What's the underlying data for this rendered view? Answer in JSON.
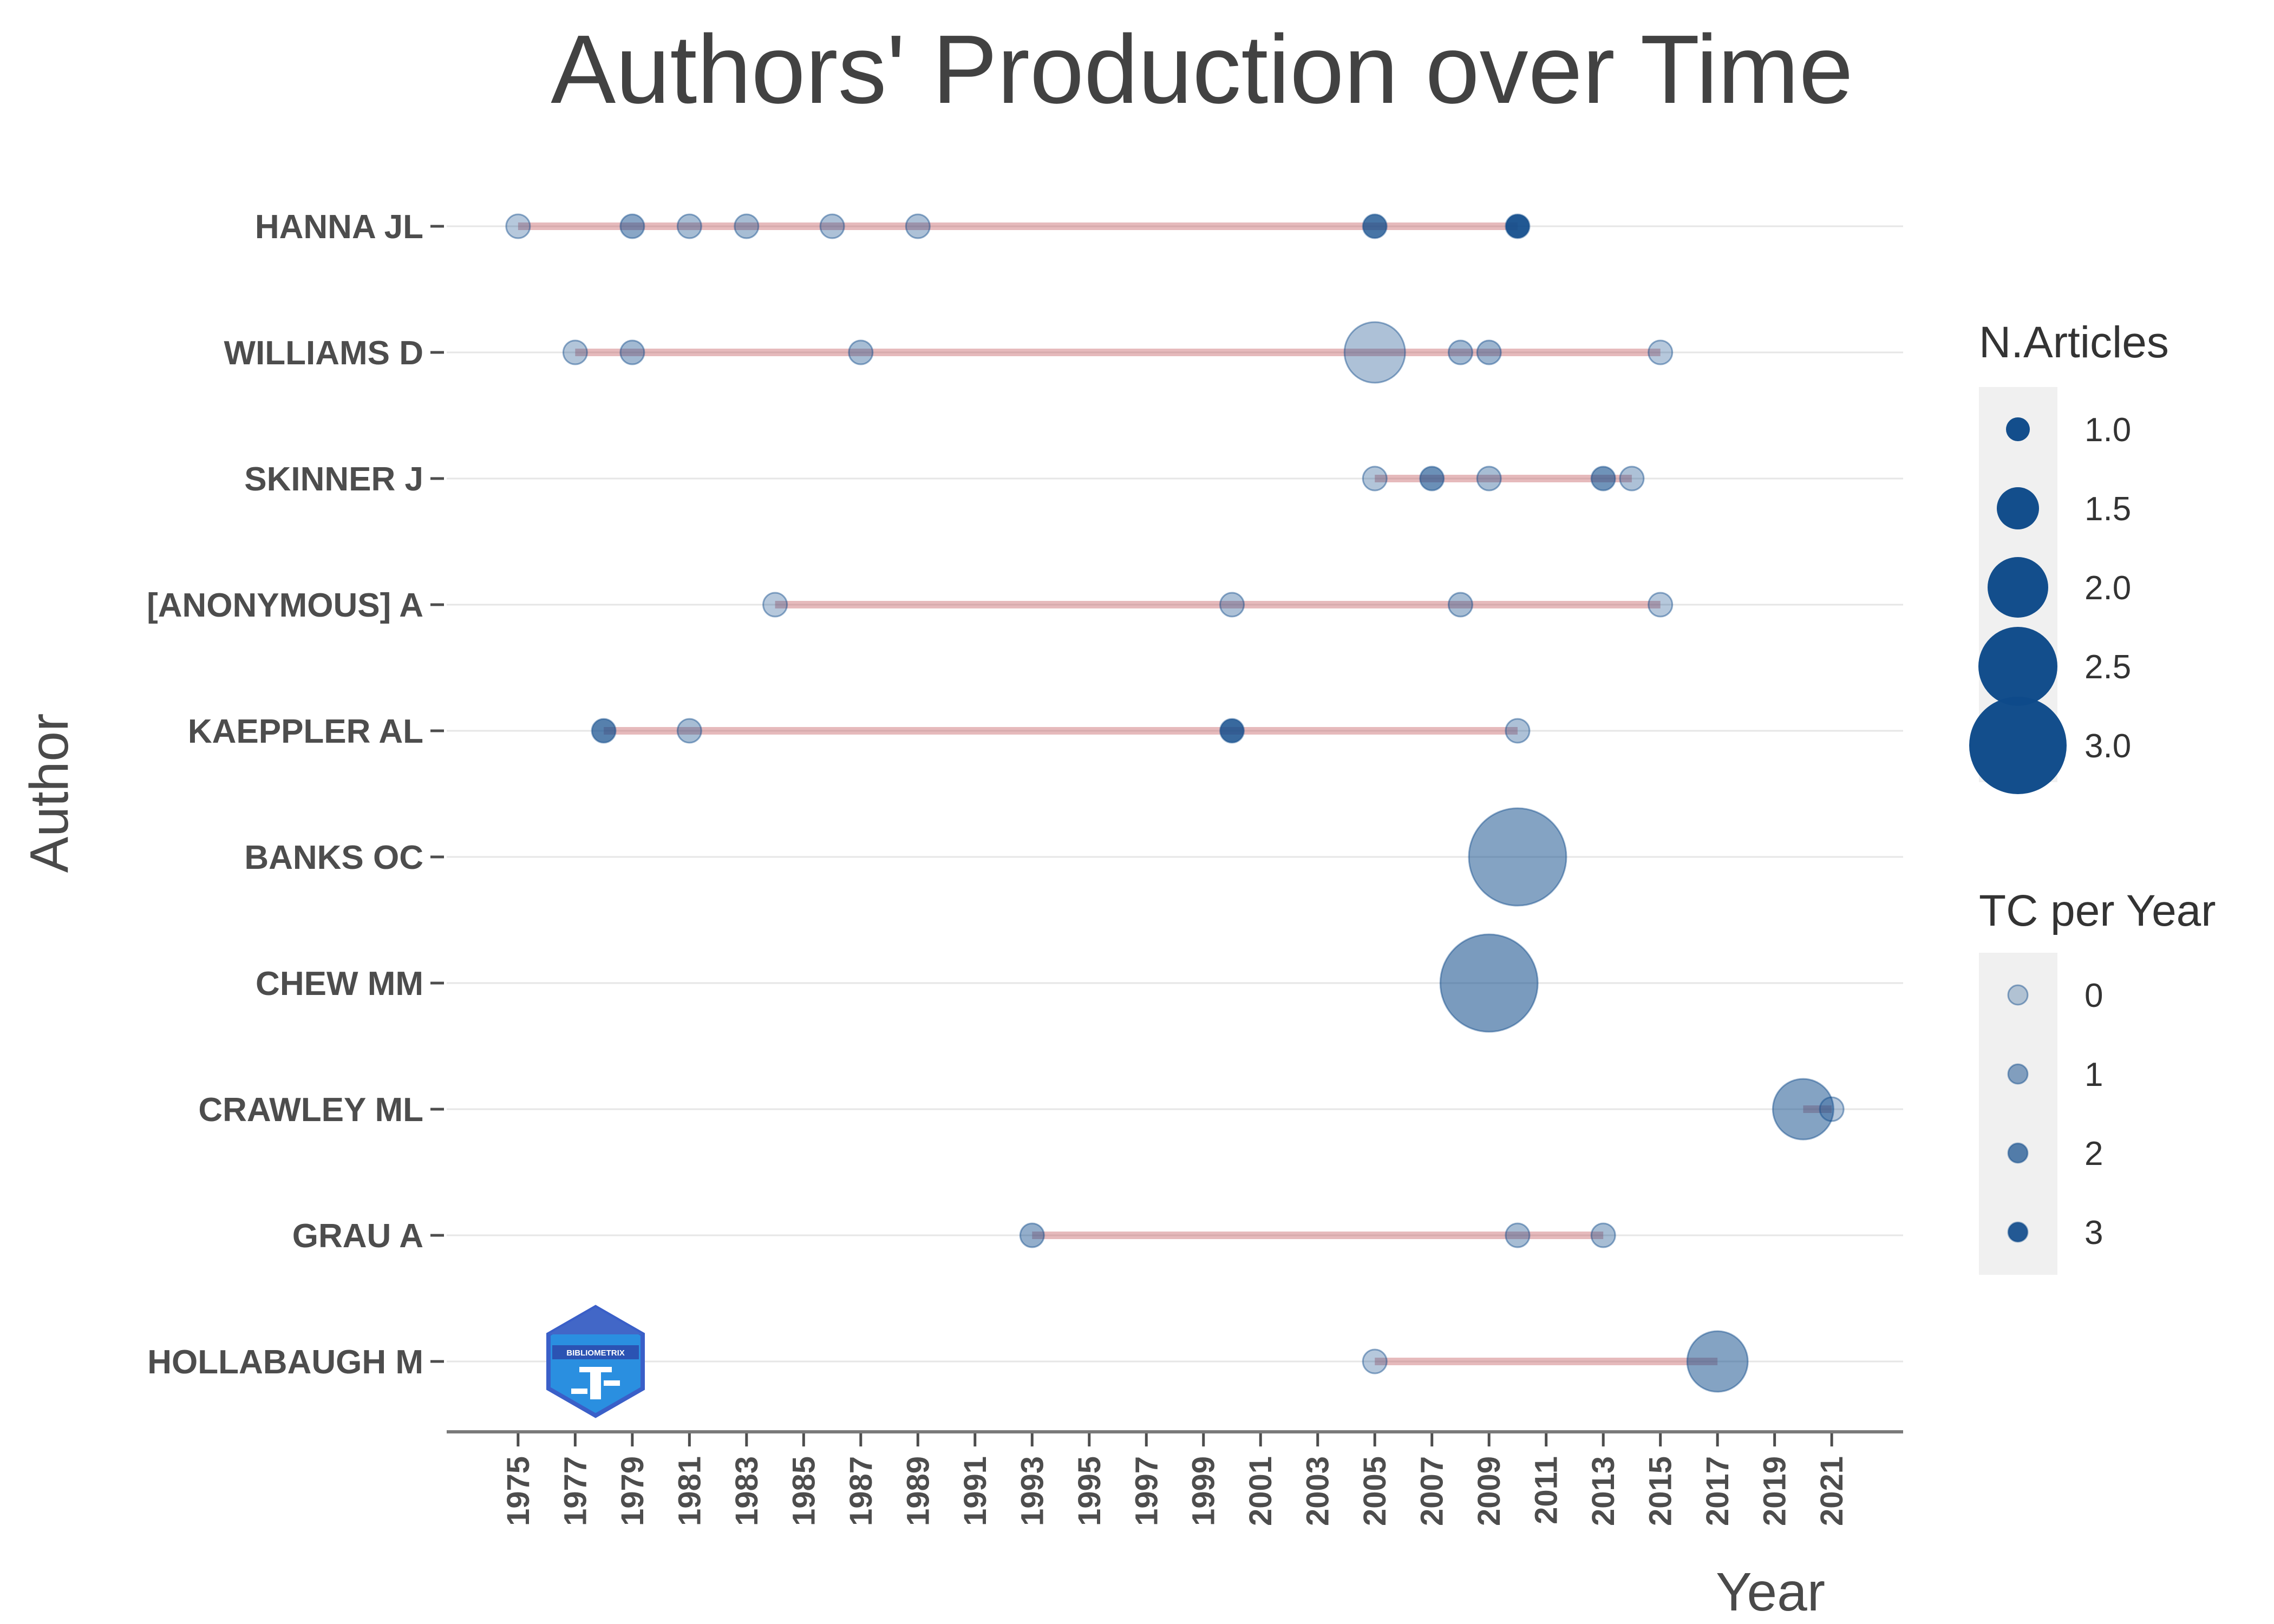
{
  "chart_data": {
    "type": "scatter",
    "title": "Authors' Production over Time",
    "xlabel": "Year",
    "ylabel": "Author",
    "xlim": [
      1972.5,
      2023.5
    ],
    "x_ticks": [
      1975,
      1977,
      1979,
      1981,
      1983,
      1985,
      1987,
      1989,
      1991,
      1993,
      1995,
      1997,
      1999,
      2001,
      2003,
      2005,
      2007,
      2009,
      2011,
      2013,
      2015,
      2017,
      2019,
      2021
    ],
    "grid": "horizontal",
    "authors": [
      "HANNA JL",
      "WILLIAMS D",
      "SKINNER J",
      "[ANONYMOUS] A",
      "KAEPPLER AL",
      "BANKS OC",
      "CHEW MM",
      "CRAWLEY ML",
      "GRAU A",
      "HOLLABAUGH M"
    ],
    "lines": [
      {
        "author": "HANNA JL",
        "start": 1975,
        "end": 2010
      },
      {
        "author": "WILLIAMS D",
        "start": 1977,
        "end": 2015
      },
      {
        "author": "SKINNER J",
        "start": 2005,
        "end": 2014
      },
      {
        "author": "[ANONYMOUS] A",
        "start": 1984,
        "end": 2015
      },
      {
        "author": "KAEPPLER AL",
        "start": 1978,
        "end": 2010
      },
      {
        "author": "BANKS OC",
        "start": 2010,
        "end": 2010
      },
      {
        "author": "CHEW MM",
        "start": 2009,
        "end": 2009
      },
      {
        "author": "CRAWLEY ML",
        "start": 2020,
        "end": 2021
      },
      {
        "author": "GRAU A",
        "start": 1993,
        "end": 2013
      },
      {
        "author": "HOLLABAUGH M",
        "start": 2005,
        "end": 2017
      }
    ],
    "points": [
      {
        "author": "HANNA JL",
        "year": 1975,
        "articles": 1,
        "tc_per_year": 0.1
      },
      {
        "author": "HANNA JL",
        "year": 1979,
        "articles": 1,
        "tc_per_year": 1.0
      },
      {
        "author": "HANNA JL",
        "year": 1981,
        "articles": 1,
        "tc_per_year": 0.4
      },
      {
        "author": "HANNA JL",
        "year": 1983,
        "articles": 1,
        "tc_per_year": 0.4
      },
      {
        "author": "HANNA JL",
        "year": 1986,
        "articles": 1,
        "tc_per_year": 0.3
      },
      {
        "author": "HANNA JL",
        "year": 1989,
        "articles": 1,
        "tc_per_year": 0.3
      },
      {
        "author": "HANNA JL",
        "year": 2005,
        "articles": 1,
        "tc_per_year": 2.3
      },
      {
        "author": "HANNA JL",
        "year": 2010,
        "articles": 1,
        "tc_per_year": 3.3
      },
      {
        "author": "WILLIAMS D",
        "year": 1977,
        "articles": 1,
        "tc_per_year": 0.2
      },
      {
        "author": "WILLIAMS D",
        "year": 1979,
        "articles": 1,
        "tc_per_year": 0.5
      },
      {
        "author": "WILLIAMS D",
        "year": 1987,
        "articles": 1,
        "tc_per_year": 0.4
      },
      {
        "author": "WILLIAMS D",
        "year": 2005,
        "articles": 2,
        "tc_per_year": 0.3
      },
      {
        "author": "WILLIAMS D",
        "year": 2008,
        "articles": 1,
        "tc_per_year": 0.5
      },
      {
        "author": "WILLIAMS D",
        "year": 2009,
        "articles": 1,
        "tc_per_year": 0.6
      },
      {
        "author": "WILLIAMS D",
        "year": 2015,
        "articles": 1,
        "tc_per_year": 0.1
      },
      {
        "author": "SKINNER J",
        "year": 2005,
        "articles": 1,
        "tc_per_year": 0.2
      },
      {
        "author": "SKINNER J",
        "year": 2007,
        "articles": 1,
        "tc_per_year": 1.6
      },
      {
        "author": "SKINNER J",
        "year": 2009,
        "articles": 1,
        "tc_per_year": 0.4
      },
      {
        "author": "SKINNER J",
        "year": 2013,
        "articles": 1,
        "tc_per_year": 1.5
      },
      {
        "author": "SKINNER J",
        "year": 2014,
        "articles": 1,
        "tc_per_year": 0.3
      },
      {
        "author": "[ANONYMOUS] A",
        "year": 1984,
        "articles": 1,
        "tc_per_year": 0.1
      },
      {
        "author": "[ANONYMOUS] A",
        "year": 2000,
        "articles": 1,
        "tc_per_year": 0.3
      },
      {
        "author": "[ANONYMOUS] A",
        "year": 2008,
        "articles": 1,
        "tc_per_year": 0.4
      },
      {
        "author": "[ANONYMOUS] A",
        "year": 2015,
        "articles": 1,
        "tc_per_year": 0.1
      },
      {
        "author": "KAEPPLER AL",
        "year": 1978,
        "articles": 1,
        "tc_per_year": 2.0
      },
      {
        "author": "KAEPPLER AL",
        "year": 1981,
        "articles": 1,
        "tc_per_year": 0.4
      },
      {
        "author": "KAEPPLER AL",
        "year": 2000,
        "articles": 1,
        "tc_per_year": 2.6
      },
      {
        "author": "KAEPPLER AL",
        "year": 2010,
        "articles": 1,
        "tc_per_year": 0.3
      },
      {
        "author": "BANKS OC",
        "year": 2010,
        "articles": 3,
        "tc_per_year": 1.1
      },
      {
        "author": "CHEW MM",
        "year": 2009,
        "articles": 3,
        "tc_per_year": 1.3
      },
      {
        "author": "CRAWLEY ML",
        "year": 2020,
        "articles": 2,
        "tc_per_year": 1.1
      },
      {
        "author": "CRAWLEY ML",
        "year": 2021,
        "articles": 1,
        "tc_per_year": 0.1
      },
      {
        "author": "GRAU A",
        "year": 1993,
        "articles": 1,
        "tc_per_year": 0.8
      },
      {
        "author": "GRAU A",
        "year": 2010,
        "articles": 1,
        "tc_per_year": 0.4
      },
      {
        "author": "GRAU A",
        "year": 2013,
        "articles": 1,
        "tc_per_year": 0.4
      },
      {
        "author": "HOLLABAUGH M",
        "year": 2005,
        "articles": 1,
        "tc_per_year": 0.1
      },
      {
        "author": "HOLLABAUGH M",
        "year": 2017,
        "articles": 2,
        "tc_per_year": 1.1
      }
    ],
    "legend_size": {
      "title": "N.Articles",
      "values": [
        1.0,
        1.5,
        2.0,
        2.5,
        3.0
      ],
      "labels": [
        "1.0",
        "1.5",
        "2.0",
        "2.5",
        "3.0"
      ]
    },
    "legend_color": {
      "title": "TC per Year",
      "values": [
        0,
        1,
        2,
        3
      ],
      "labels": [
        "0",
        "1",
        "2",
        "3"
      ]
    },
    "legend_placement": "right",
    "colors": {
      "point": "#0e4a8a",
      "line": "#c45a5f",
      "grid": "#e6e6e6",
      "axis": "#7a7a7a",
      "legend_bg": "#f0f0f0"
    }
  },
  "logo": {
    "text": "BIBLIOMETRIX"
  }
}
